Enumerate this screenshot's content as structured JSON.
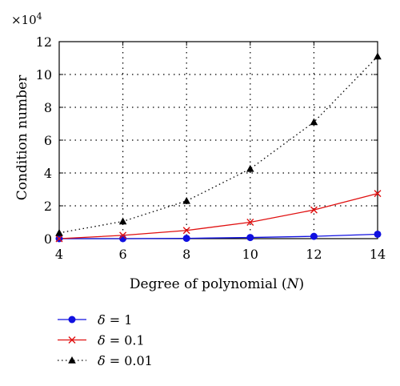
{
  "chart_data": {
    "type": "line",
    "xlabel": "Degree of polynomial (N)",
    "ylabel": "Condition number",
    "multiplier": "×10",
    "multiplier_exp": "4",
    "x": [
      4,
      6,
      8,
      10,
      12,
      14
    ],
    "xlim": [
      4,
      14
    ],
    "ylim": [
      0,
      12
    ],
    "xticks": [
      "4",
      "6",
      "8",
      "10",
      "12",
      "14"
    ],
    "yticks": [
      "0",
      "2",
      "4",
      "6",
      "8",
      "10",
      "12"
    ],
    "grid": true,
    "legend_position": "below",
    "series": [
      {
        "name": "δ = 1",
        "values": [
          0.0,
          0.0,
          0.02,
          0.07,
          0.14,
          0.27
        ],
        "color": "#1010e0",
        "marker": "circle",
        "linestyle": "solid"
      },
      {
        "name": "δ = 0.1",
        "values": [
          0.0,
          0.2,
          0.5,
          1.0,
          1.75,
          2.75
        ],
        "color": "#e01010",
        "marker": "x",
        "linestyle": "solid"
      },
      {
        "name": "δ = 0.01",
        "values": [
          0.35,
          1.05,
          2.3,
          4.25,
          7.1,
          11.1
        ],
        "color": "#000000",
        "marker": "triangle",
        "linestyle": "dotted"
      }
    ]
  }
}
